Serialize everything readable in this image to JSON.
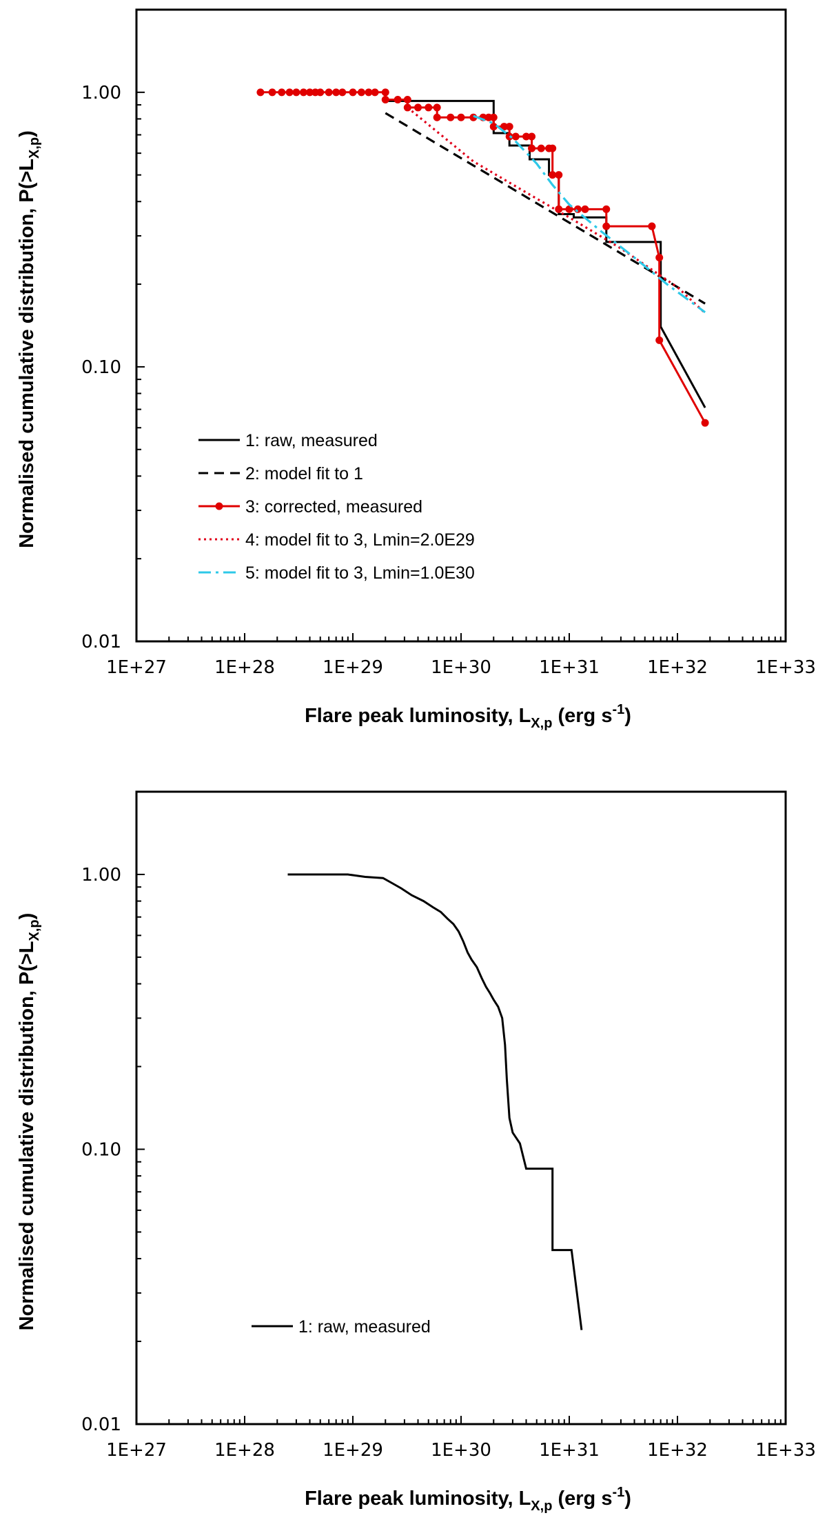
{
  "chart_data": [
    {
      "type": "line",
      "xscale": "log",
      "yscale": "log",
      "xlim": [
        1e+27,
        1e+33
      ],
      "ylim": [
        0.01,
        2
      ],
      "xticks": [
        "1E+27",
        "1E+28",
        "1E+29",
        "1E+30",
        "1E+31",
        "1E+32",
        "1E+33"
      ],
      "yticks": [
        "0.01",
        "0.10",
        "1.00"
      ],
      "xlabel": {
        "main": "Flare peak luminosity, L",
        "sub": "X,p",
        "tail": " (erg s",
        "sup": "-1",
        "end": ")"
      },
      "ylabel": {
        "main": "Normalised cumulative distribution, P(>L",
        "sub": "X,p",
        "end": ")"
      },
      "legend_position": "bottom-left",
      "series": [
        {
          "name": "1: raw, measured",
          "color": "#000000",
          "style": "solid",
          "markers": false,
          "points": [
            [
              2e+29,
              0.93
            ],
            [
              2e+30,
              0.93
            ],
            [
              2e+30,
              0.71
            ],
            [
              2.8e+30,
              0.71
            ],
            [
              2.8e+30,
              0.64
            ],
            [
              4.3e+30,
              0.64
            ],
            [
              4.3e+30,
              0.57
            ],
            [
              6.5e+30,
              0.57
            ],
            [
              6.5e+30,
              0.5
            ],
            [
              8e+30,
              0.5
            ],
            [
              8e+30,
              0.36
            ],
            [
              1.1e+31,
              0.36
            ],
            [
              1.1e+31,
              0.35
            ],
            [
              2.2e+31,
              0.35
            ],
            [
              2.2e+31,
              0.285
            ],
            [
              7e+31,
              0.285
            ],
            [
              7e+31,
              0.14
            ],
            [
              1.8e+32,
              0.071
            ]
          ]
        },
        {
          "name": "2: model fit to 1",
          "color": "#000000",
          "style": "dashed",
          "markers": false,
          "points": [
            [
              2e+29,
              0.84
            ],
            [
              1.8e+32,
              0.17
            ]
          ]
        },
        {
          "name": "3: corrected, measured",
          "color": "#e00000",
          "style": "solid",
          "markers": true,
          "points": [
            [
              1.4e+28,
              1
            ],
            [
              1.8e+28,
              1
            ],
            [
              2.2e+28,
              1
            ],
            [
              2.6e+28,
              1
            ],
            [
              3e+28,
              1
            ],
            [
              3.5e+28,
              1
            ],
            [
              4e+28,
              1
            ],
            [
              4.5e+28,
              1
            ],
            [
              5e+28,
              1
            ],
            [
              6e+28,
              1
            ],
            [
              7e+28,
              1
            ],
            [
              8e+28,
              1
            ],
            [
              1e+29,
              1
            ],
            [
              1.2e+29,
              1
            ],
            [
              1.4e+29,
              1
            ],
            [
              1.6e+29,
              1
            ],
            [
              2e+29,
              1
            ],
            [
              2e+29,
              0.94
            ],
            [
              2.6e+29,
              0.94
            ],
            [
              3.2e+29,
              0.94
            ],
            [
              3.2e+29,
              0.88
            ],
            [
              4e+29,
              0.88
            ],
            [
              5e+29,
              0.88
            ],
            [
              6e+29,
              0.88
            ],
            [
              6e+29,
              0.81
            ],
            [
              8e+29,
              0.81
            ],
            [
              1e+30,
              0.81
            ],
            [
              1.3e+30,
              0.81
            ],
            [
              1.6e+30,
              0.81
            ],
            [
              1.8e+30,
              0.81
            ],
            [
              2e+30,
              0.81
            ],
            [
              2e+30,
              0.75
            ],
            [
              2.5e+30,
              0.75
            ],
            [
              2.8e+30,
              0.75
            ],
            [
              2.8e+30,
              0.69
            ],
            [
              3.2e+30,
              0.69
            ],
            [
              4e+30,
              0.69
            ],
            [
              4.5e+30,
              0.69
            ],
            [
              4.5e+30,
              0.625
            ],
            [
              5.5e+30,
              0.625
            ],
            [
              6.5e+30,
              0.625
            ],
            [
              7e+30,
              0.625
            ],
            [
              7e+30,
              0.5
            ],
            [
              8e+30,
              0.5
            ],
            [
              8e+30,
              0.375
            ],
            [
              1e+31,
              0.375
            ],
            [
              1.2e+31,
              0.375
            ],
            [
              1.4e+31,
              0.375
            ],
            [
              2.2e+31,
              0.375
            ],
            [
              2.2e+31,
              0.325
            ],
            [
              5.8e+31,
              0.325
            ],
            [
              5.8e+31,
              0.325
            ],
            [
              6.8e+31,
              0.25
            ],
            [
              6.8e+31,
              0.125
            ],
            [
              1.8e+32,
              0.0625
            ]
          ]
        },
        {
          "name": "4: model fit to 3, Lmin=2.0E29",
          "color": "#e0001a",
          "style": "dotted",
          "markers": false,
          "points": [
            [
              3.2e+29,
              0.88
            ],
            [
              1.3e+30,
              0.56
            ],
            [
              5e+30,
              0.41
            ],
            [
              1e+31,
              0.35
            ],
            [
              3e+31,
              0.27
            ],
            [
              1e+32,
              0.195
            ],
            [
              1.8e+32,
              0.157
            ]
          ]
        },
        {
          "name": "5: model fit to 3, Lmin=1.0E30",
          "color": "#2ec8e8",
          "style": "dashdot",
          "markers": false,
          "points": [
            [
              1.3e+30,
              0.82
            ],
            [
              2e+30,
              0.77
            ],
            [
              3e+30,
              0.68
            ],
            [
              5e+30,
              0.55
            ],
            [
              7e+30,
              0.46
            ],
            [
              1e+31,
              0.39
            ],
            [
              2e+31,
              0.31
            ],
            [
              4e+31,
              0.25
            ],
            [
              8e+31,
              0.2
            ],
            [
              1.8e+32,
              0.158
            ]
          ]
        }
      ]
    },
    {
      "type": "line",
      "xscale": "log",
      "yscale": "log",
      "xlim": [
        1e+27,
        1e+33
      ],
      "ylim": [
        0.01,
        2
      ],
      "xticks": [
        "1E+27",
        "1E+28",
        "1E+29",
        "1E+30",
        "1E+31",
        "1E+32",
        "1E+33"
      ],
      "yticks": [
        "0.01",
        "0.10",
        "1.00"
      ],
      "xlabel": {
        "main": "Flare peak luminosity, L",
        "sub": "X,p",
        "tail": " (erg s",
        "sup": "-1",
        "end": ")"
      },
      "ylabel": {
        "main": "Normalised cumulative distribution, P(>L",
        "sub": "X,p",
        "end": ")"
      },
      "legend_position": "bottom-left",
      "series": [
        {
          "name": "1: raw, measured",
          "color": "#000000",
          "style": "solid",
          "markers": false,
          "points": [
            [
              2.5e+28,
              1
            ],
            [
              9e+28,
              1
            ],
            [
              1.3e+29,
              0.98
            ],
            [
              1.9e+29,
              0.97
            ],
            [
              2.3e+29,
              0.93
            ],
            [
              2.8e+29,
              0.89
            ],
            [
              3.5e+29,
              0.84
            ],
            [
              4.5e+29,
              0.8
            ],
            [
              5.5e+29,
              0.76
            ],
            [
              6.5e+29,
              0.73
            ],
            [
              7.5e+29,
              0.69
            ],
            [
              8.5e+29,
              0.66
            ],
            [
              9.5e+29,
              0.62
            ],
            [
              1.05e+30,
              0.57
            ],
            [
              1.15e+30,
              0.52
            ],
            [
              1.25e+30,
              0.49
            ],
            [
              1.4e+30,
              0.46
            ],
            [
              1.55e+30,
              0.42
            ],
            [
              1.7e+30,
              0.39
            ],
            [
              1.85e+30,
              0.37
            ],
            [
              2e+30,
              0.35
            ],
            [
              2.2e+30,
              0.33
            ],
            [
              2.4e+30,
              0.3
            ],
            [
              2.55e+30,
              0.24
            ],
            [
              2.65e+30,
              0.18
            ],
            [
              2.8e+30,
              0.13
            ],
            [
              3e+30,
              0.115
            ],
            [
              3.5e+30,
              0.105
            ],
            [
              4e+30,
              0.085
            ],
            [
              7e+30,
              0.085
            ],
            [
              7e+30,
              0.043
            ],
            [
              1.05e+31,
              0.043
            ],
            [
              1.3e+31,
              0.022
            ]
          ]
        }
      ]
    }
  ]
}
